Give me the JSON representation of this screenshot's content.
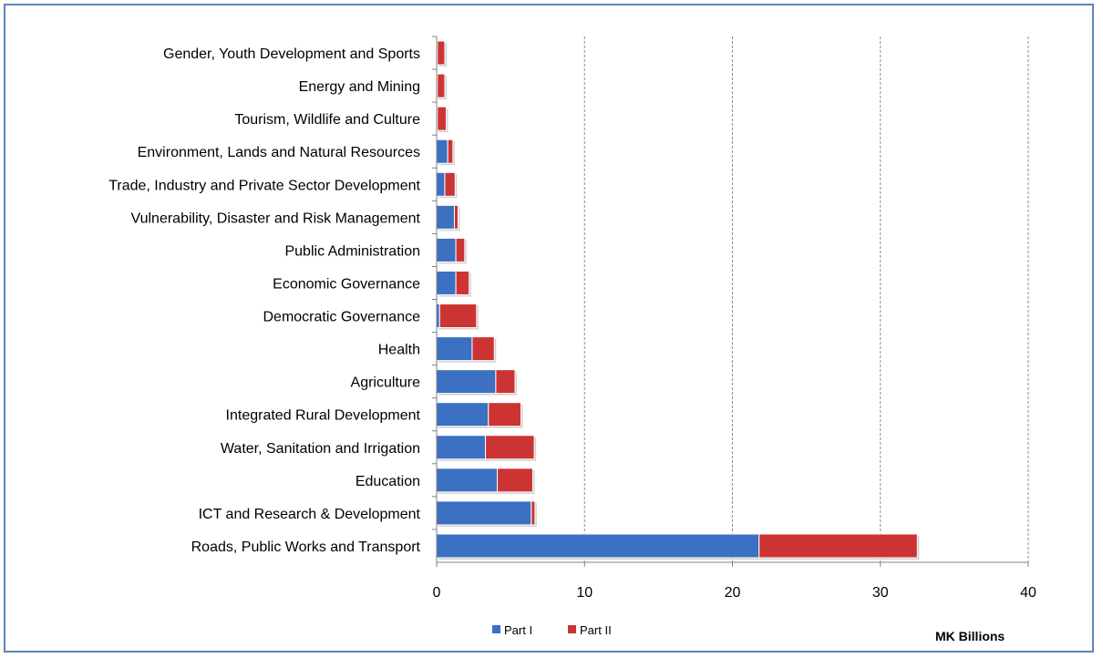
{
  "chart_data": {
    "type": "bar",
    "orientation": "horizontal",
    "stacked": true,
    "categories": [
      "Gender, Youth Development and Sports",
      "Energy and Mining",
      "Tourism, Wildlife and Culture",
      "Environment, Lands and Natural Resources",
      "Trade, Industry and Private Sector Development",
      "Vulnerability, Disaster and Risk Management",
      "Public Administration",
      "Economic Governance",
      "Democratic Governance",
      "Health",
      "Agriculture",
      "Integrated Rural Development",
      "Water, Sanitation and Irrigation",
      "Education",
      "ICT and Research & Development",
      "Roads, Public Works and Transport"
    ],
    "series": [
      {
        "name": "Part I",
        "color": "#3b70c2",
        "values": [
          0.05,
          0.05,
          0.05,
          0.75,
          0.55,
          1.2,
          1.3,
          1.3,
          0.2,
          2.4,
          4.0,
          3.5,
          3.3,
          4.1,
          6.4,
          21.8
        ]
      },
      {
        "name": "Part II",
        "color": "#cc3434",
        "values": [
          0.5,
          0.5,
          0.6,
          0.35,
          0.7,
          0.25,
          0.6,
          0.9,
          2.5,
          1.5,
          1.3,
          2.2,
          3.3,
          2.4,
          0.25,
          10.7
        ]
      }
    ],
    "xticks": [
      "0",
      "10",
      "20",
      "30",
      "40"
    ],
    "xlim": [
      0,
      40
    ],
    "xlabel": "MK Billions",
    "grid": "vertical dashed",
    "legend": "bottom-center"
  }
}
